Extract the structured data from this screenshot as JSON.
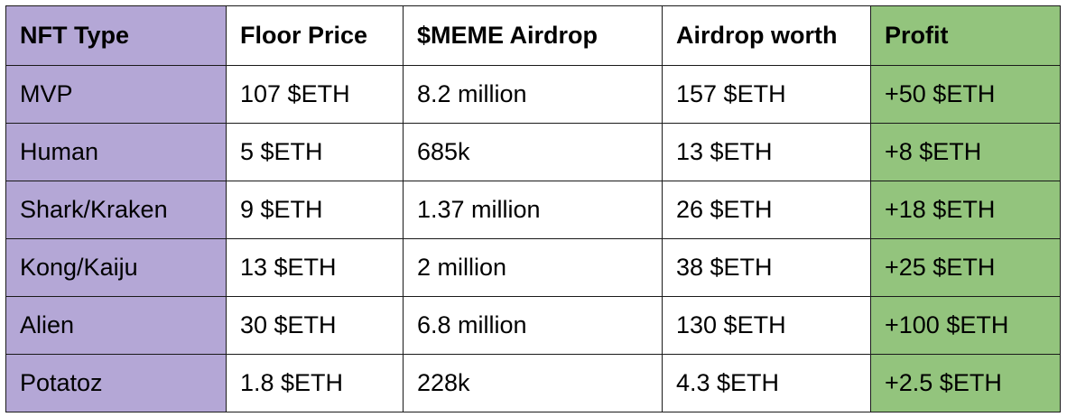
{
  "colors": {
    "type_column_bg": "#b4a7d6",
    "profit_column_bg": "#93c47d",
    "cell_bg": "#ffffff",
    "border": "#1a1a1a"
  },
  "table": {
    "headers": [
      "NFT Type",
      "Floor Price",
      "$MEME Airdrop",
      "Airdrop worth",
      "Profit"
    ],
    "rows": [
      [
        "MVP",
        "107 $ETH",
        "8.2 million",
        "157 $ETH",
        "+50 $ETH"
      ],
      [
        "Human",
        "5 $ETH",
        "685k",
        "13 $ETH",
        "+8 $ETH"
      ],
      [
        "Shark/Kraken",
        "9 $ETH",
        "1.37 million",
        "26 $ETH",
        "+18 $ETH"
      ],
      [
        "Kong/Kaiju",
        "13 $ETH",
        "2 million",
        "38 $ETH",
        "+25 $ETH"
      ],
      [
        "Alien",
        "30 $ETH",
        "6.8 million",
        "130 $ETH",
        "+100 $ETH"
      ],
      [
        "Potatoz",
        "1.8 $ETH",
        "228k",
        "4.3 $ETH",
        "+2.5 $ETH"
      ]
    ]
  }
}
